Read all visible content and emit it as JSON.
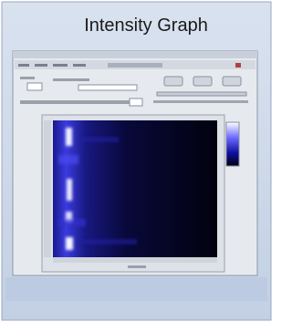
{
  "title": "Intensity Graph"
}
